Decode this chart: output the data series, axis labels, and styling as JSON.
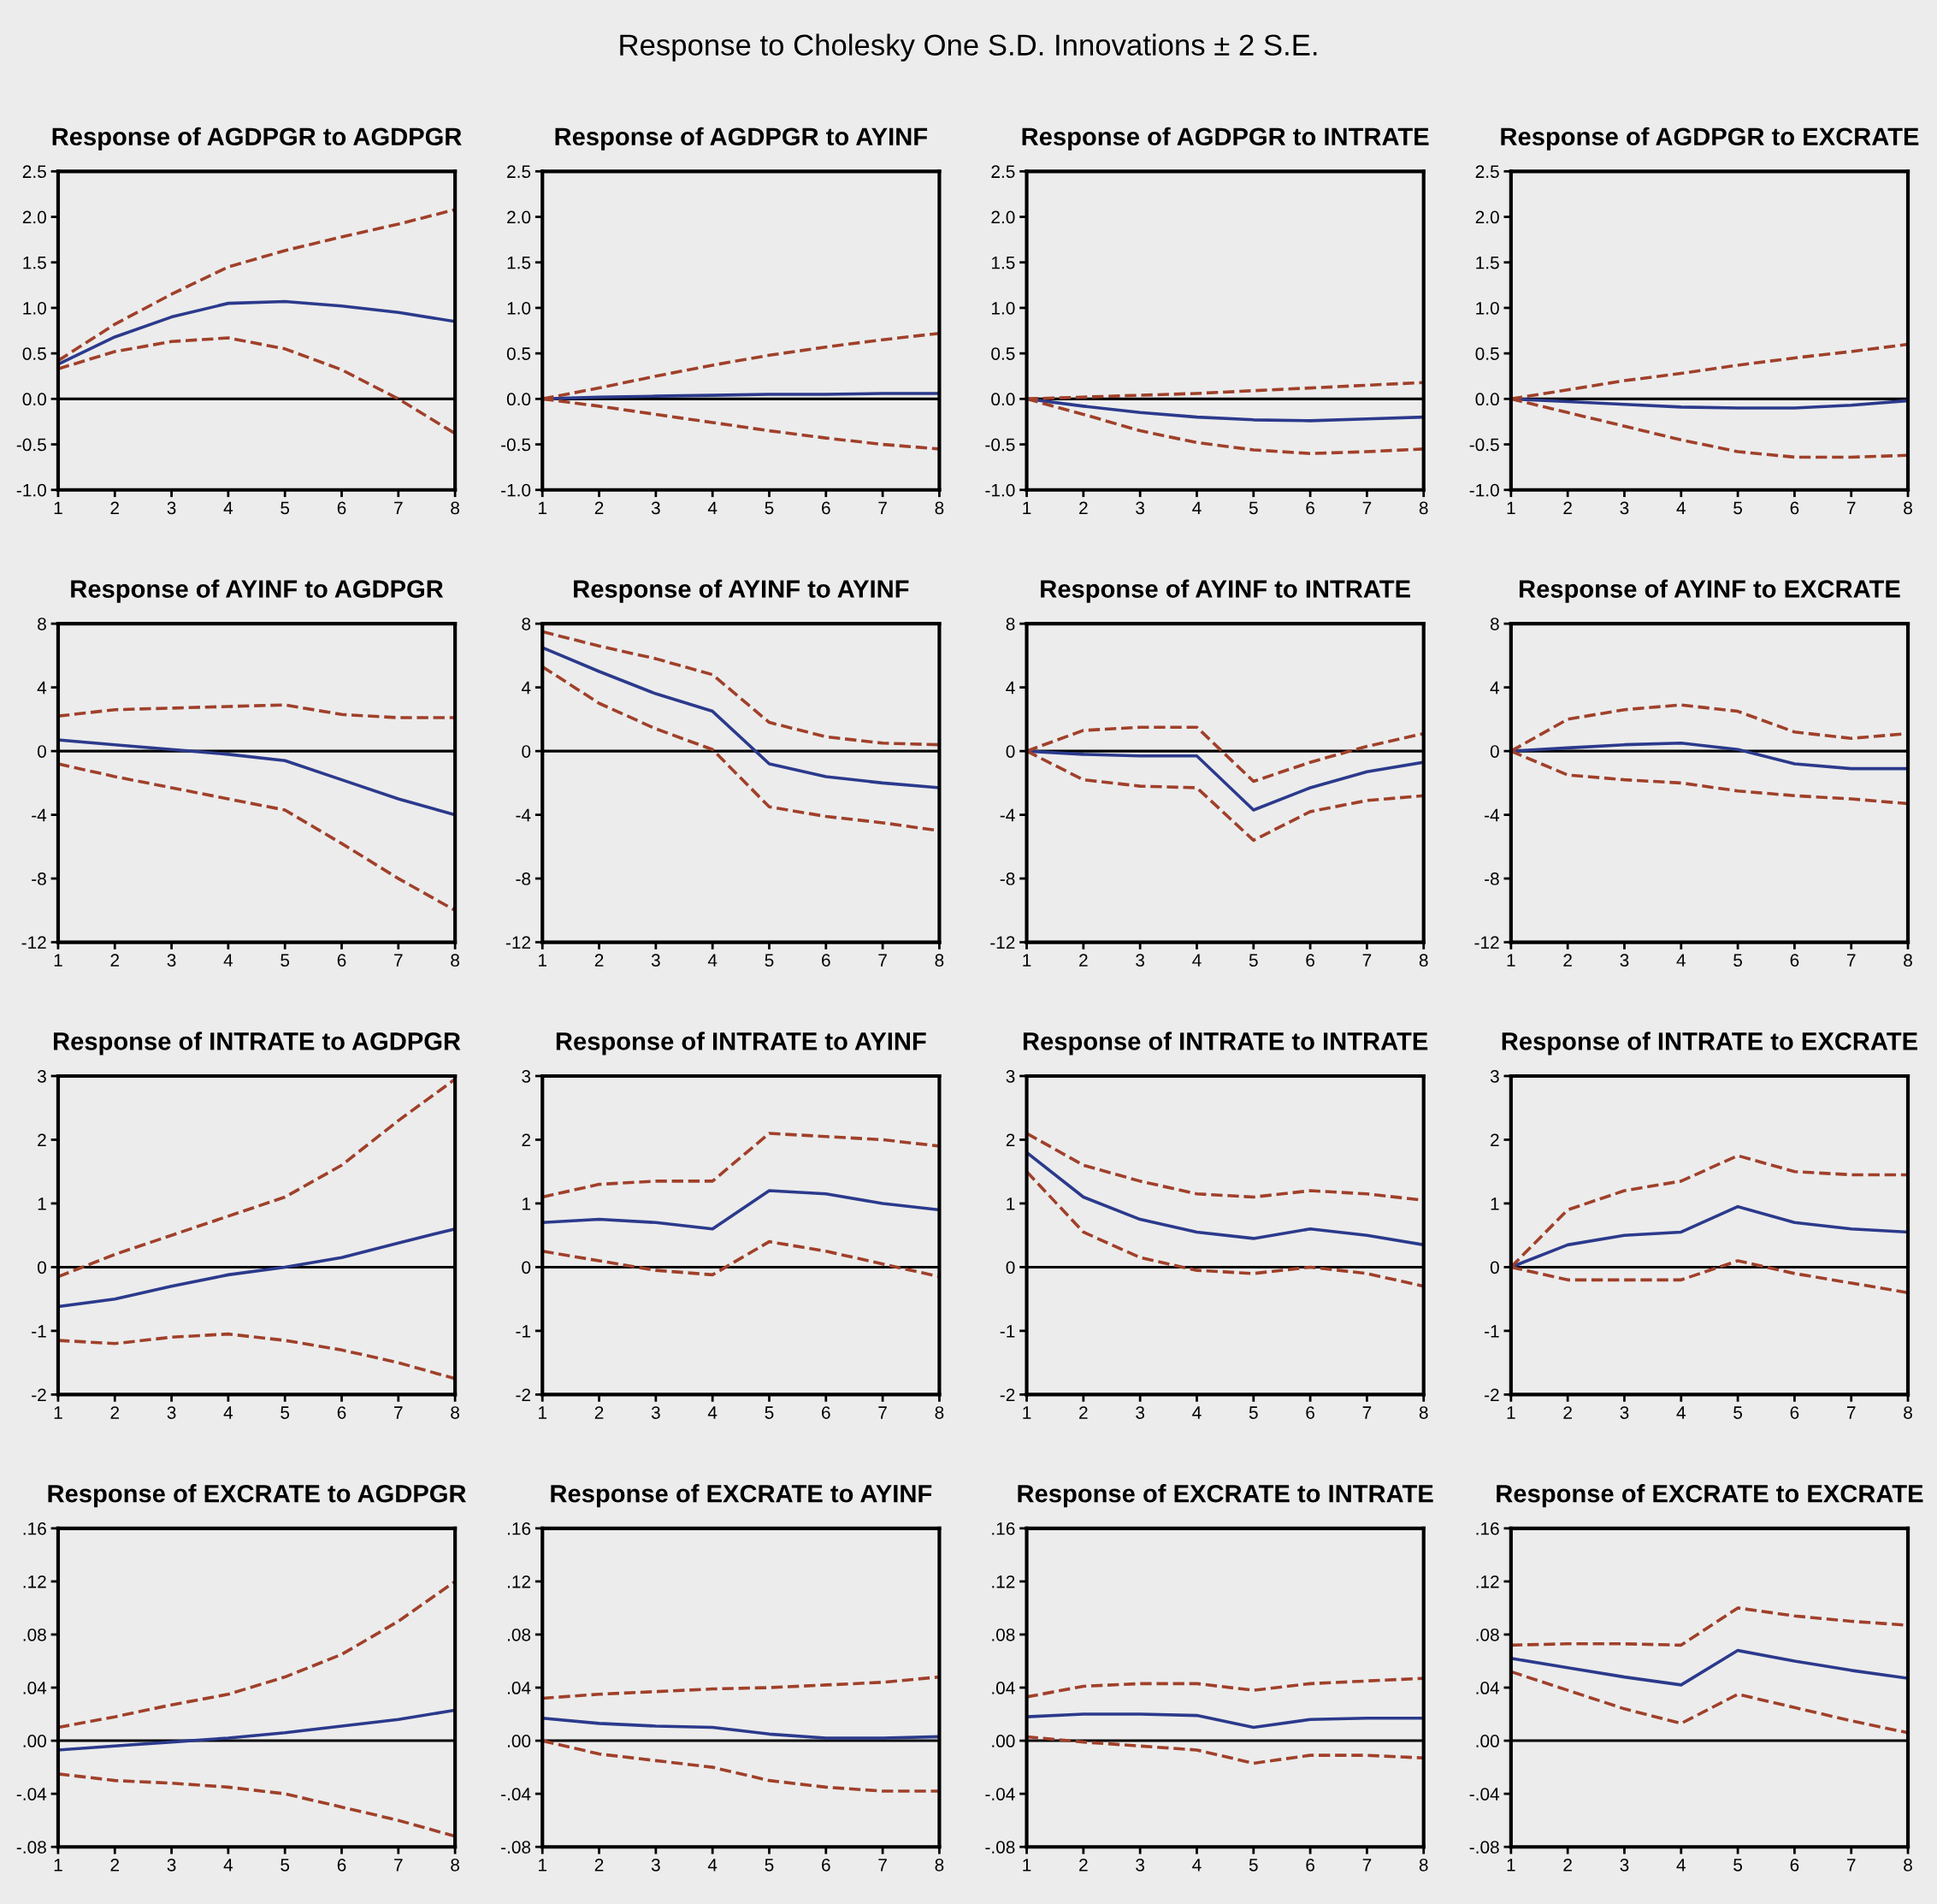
{
  "chart_data": [
    {
      "type": "line",
      "title": "Response of AGDPGR to AGDPGR",
      "annotations": [
        "Response to Cholesky One S.D. Innovations ± 2 S.E."
      ],
      "x": [
        1,
        2,
        3,
        4,
        5,
        6,
        7,
        8
      ],
      "xlim": [
        1,
        8
      ],
      "xticks": [
        1,
        2,
        3,
        4,
        5,
        6,
        7,
        8
      ],
      "ylim": [
        -1,
        2.5
      ],
      "yticks": [
        {
          "value": -1,
          "label": "-1.0"
        },
        {
          "value": -0.5,
          "label": "-0.5"
        },
        {
          "value": 0,
          "label": "0.0"
        },
        {
          "value": 0.5,
          "label": "0.5"
        },
        {
          "value": 1,
          "label": "1.0"
        },
        {
          "value": 1.5,
          "label": "1.5"
        },
        {
          "value": 2,
          "label": "2.0"
        },
        {
          "value": 2.5,
          "label": "2.5"
        }
      ],
      "ref_lines": [
        {
          "axis": "y",
          "value": 0,
          "color": "#000000"
        }
      ],
      "grid": false,
      "series": [
        {
          "color": "#2b3a8c",
          "line_style": "solid",
          "values": [
            0.38,
            0.68,
            0.9,
            1.05,
            1.07,
            1.02,
            0.95,
            0.85
          ]
        },
        {
          "color": "#a0402a",
          "line_style": "dashed",
          "values": [
            0.42,
            0.82,
            1.15,
            1.45,
            1.63,
            1.78,
            1.92,
            2.08
          ]
        },
        {
          "color": "#a0402a",
          "line_style": "dashed",
          "values": [
            0.33,
            0.52,
            0.63,
            0.67,
            0.55,
            0.32,
            0.0,
            -0.38
          ]
        }
      ]
    },
    {
      "type": "line",
      "title": "Response of AGDPGR to AYINF",
      "x": [
        1,
        2,
        3,
        4,
        5,
        6,
        7,
        8
      ],
      "xlim": [
        1,
        8
      ],
      "xticks": [
        1,
        2,
        3,
        4,
        5,
        6,
        7,
        8
      ],
      "ylim": [
        -1,
        2.5
      ],
      "yticks": [
        {
          "value": -1,
          "label": "-1.0"
        },
        {
          "value": -0.5,
          "label": "-0.5"
        },
        {
          "value": 0,
          "label": "0.0"
        },
        {
          "value": 0.5,
          "label": "0.5"
        },
        {
          "value": 1,
          "label": "1.0"
        },
        {
          "value": 1.5,
          "label": "1.5"
        },
        {
          "value": 2,
          "label": "2.0"
        },
        {
          "value": 2.5,
          "label": "2.5"
        }
      ],
      "ref_lines": [
        {
          "axis": "y",
          "value": 0,
          "color": "#000000"
        }
      ],
      "grid": false,
      "series": [
        {
          "color": "#2b3a8c",
          "line_style": "solid",
          "values": [
            0,
            0.02,
            0.03,
            0.04,
            0.05,
            0.05,
            0.06,
            0.06
          ]
        },
        {
          "color": "#a0402a",
          "line_style": "dashed",
          "values": [
            0,
            0.12,
            0.25,
            0.37,
            0.48,
            0.57,
            0.65,
            0.72
          ]
        },
        {
          "color": "#a0402a",
          "line_style": "dashed",
          "values": [
            0,
            -0.08,
            -0.17,
            -0.26,
            -0.35,
            -0.43,
            -0.5,
            -0.55
          ]
        }
      ]
    },
    {
      "type": "line",
      "title": "Response of AGDPGR to INTRATE",
      "x": [
        1,
        2,
        3,
        4,
        5,
        6,
        7,
        8
      ],
      "xlim": [
        1,
        8
      ],
      "xticks": [
        1,
        2,
        3,
        4,
        5,
        6,
        7,
        8
      ],
      "ylim": [
        -1,
        2.5
      ],
      "yticks": [
        {
          "value": -1,
          "label": "-1.0"
        },
        {
          "value": -0.5,
          "label": "-0.5"
        },
        {
          "value": 0,
          "label": "0.0"
        },
        {
          "value": 0.5,
          "label": "0.5"
        },
        {
          "value": 1,
          "label": "1.0"
        },
        {
          "value": 1.5,
          "label": "1.5"
        },
        {
          "value": 2,
          "label": "2.0"
        },
        {
          "value": 2.5,
          "label": "2.5"
        }
      ],
      "ref_lines": [
        {
          "axis": "y",
          "value": 0,
          "color": "#000000"
        }
      ],
      "grid": false,
      "series": [
        {
          "color": "#2b3a8c",
          "line_style": "solid",
          "values": [
            0,
            -0.08,
            -0.15,
            -0.2,
            -0.23,
            -0.24,
            -0.22,
            -0.2
          ]
        },
        {
          "color": "#a0402a",
          "line_style": "dashed",
          "values": [
            0,
            0.02,
            0.04,
            0.06,
            0.09,
            0.12,
            0.15,
            0.18
          ]
        },
        {
          "color": "#a0402a",
          "line_style": "dashed",
          "values": [
            0,
            -0.17,
            -0.35,
            -0.48,
            -0.56,
            -0.6,
            -0.58,
            -0.55
          ]
        }
      ]
    },
    {
      "type": "line",
      "title": "Response of AGDPGR to EXCRATE",
      "x": [
        1,
        2,
        3,
        4,
        5,
        6,
        7,
        8
      ],
      "xlim": [
        1,
        8
      ],
      "xticks": [
        1,
        2,
        3,
        4,
        5,
        6,
        7,
        8
      ],
      "ylim": [
        -1,
        2.5
      ],
      "yticks": [
        {
          "value": -1,
          "label": "-1.0"
        },
        {
          "value": -0.5,
          "label": "-0.5"
        },
        {
          "value": 0,
          "label": "0.0"
        },
        {
          "value": 0.5,
          "label": "0.5"
        },
        {
          "value": 1,
          "label": "1.0"
        },
        {
          "value": 1.5,
          "label": "1.5"
        },
        {
          "value": 2,
          "label": "2.0"
        },
        {
          "value": 2.5,
          "label": "2.5"
        }
      ],
      "ref_lines": [
        {
          "axis": "y",
          "value": 0,
          "color": "#000000"
        }
      ],
      "grid": false,
      "series": [
        {
          "color": "#2b3a8c",
          "line_style": "solid",
          "values": [
            0,
            -0.03,
            -0.06,
            -0.09,
            -0.1,
            -0.1,
            -0.07,
            -0.02
          ]
        },
        {
          "color": "#a0402a",
          "line_style": "dashed",
          "values": [
            0,
            0.1,
            0.2,
            0.28,
            0.37,
            0.45,
            0.52,
            0.6
          ]
        },
        {
          "color": "#a0402a",
          "line_style": "dashed",
          "values": [
            0,
            -0.15,
            -0.3,
            -0.45,
            -0.58,
            -0.64,
            -0.64,
            -0.62
          ]
        }
      ]
    },
    {
      "type": "line",
      "title": "Response of AYINF to AGDPGR",
      "x": [
        1,
        2,
        3,
        4,
        5,
        6,
        7,
        8
      ],
      "xlim": [
        1,
        8
      ],
      "xticks": [
        1,
        2,
        3,
        4,
        5,
        6,
        7,
        8
      ],
      "ylim": [
        -12,
        8
      ],
      "yticks": [
        -12,
        -8,
        -4,
        0,
        4,
        8
      ],
      "ref_lines": [
        {
          "axis": "y",
          "value": 0,
          "color": "#000000"
        }
      ],
      "grid": false,
      "series": [
        {
          "color": "#2b3a8c",
          "line_style": "solid",
          "values": [
            0.7,
            0.4,
            0.1,
            -0.2,
            -0.6,
            -1.8,
            -3.0,
            -4.0
          ]
        },
        {
          "color": "#a0402a",
          "line_style": "dashed",
          "values": [
            2.2,
            2.6,
            2.7,
            2.8,
            2.9,
            2.3,
            2.1,
            2.1
          ]
        },
        {
          "color": "#a0402a",
          "line_style": "dashed",
          "values": [
            -0.8,
            -1.6,
            -2.3,
            -3.0,
            -3.7,
            -5.8,
            -8.0,
            -10.0
          ]
        }
      ]
    },
    {
      "type": "line",
      "title": "Response of AYINF to AYINF",
      "x": [
        1,
        2,
        3,
        4,
        5,
        6,
        7,
        8
      ],
      "xlim": [
        1,
        8
      ],
      "xticks": [
        1,
        2,
        3,
        4,
        5,
        6,
        7,
        8
      ],
      "ylim": [
        -12,
        8
      ],
      "yticks": [
        -12,
        -8,
        -4,
        0,
        4,
        8
      ],
      "ref_lines": [
        {
          "axis": "y",
          "value": 0,
          "color": "#000000"
        }
      ],
      "grid": false,
      "series": [
        {
          "color": "#2b3a8c",
          "line_style": "solid",
          "values": [
            6.5,
            5.0,
            3.6,
            2.5,
            -0.8,
            -1.6,
            -2.0,
            -2.3
          ]
        },
        {
          "color": "#a0402a",
          "line_style": "dashed",
          "values": [
            7.5,
            6.6,
            5.8,
            4.8,
            1.8,
            0.9,
            0.5,
            0.4
          ]
        },
        {
          "color": "#a0402a",
          "line_style": "dashed",
          "values": [
            5.3,
            3.0,
            1.4,
            0.1,
            -3.5,
            -4.1,
            -4.5,
            -5.0
          ]
        }
      ]
    },
    {
      "type": "line",
      "title": "Response of AYINF to INTRATE",
      "x": [
        1,
        2,
        3,
        4,
        5,
        6,
        7,
        8
      ],
      "xlim": [
        1,
        8
      ],
      "xticks": [
        1,
        2,
        3,
        4,
        5,
        6,
        7,
        8
      ],
      "ylim": [
        -12,
        8
      ],
      "yticks": [
        -12,
        -8,
        -4,
        0,
        4,
        8
      ],
      "ref_lines": [
        {
          "axis": "y",
          "value": 0,
          "color": "#000000"
        }
      ],
      "grid": false,
      "series": [
        {
          "color": "#2b3a8c",
          "line_style": "solid",
          "values": [
            0,
            -0.2,
            -0.3,
            -0.3,
            -3.7,
            -2.3,
            -1.3,
            -0.7
          ]
        },
        {
          "color": "#a0402a",
          "line_style": "dashed",
          "values": [
            0,
            1.3,
            1.5,
            1.5,
            -1.9,
            -0.7,
            0.3,
            1.1
          ]
        },
        {
          "color": "#a0402a",
          "line_style": "dashed",
          "values": [
            0,
            -1.8,
            -2.2,
            -2.3,
            -5.6,
            -3.8,
            -3.1,
            -2.8
          ]
        }
      ]
    },
    {
      "type": "line",
      "title": "Response of AYINF to EXCRATE",
      "x": [
        1,
        2,
        3,
        4,
        5,
        6,
        7,
        8
      ],
      "xlim": [
        1,
        8
      ],
      "xticks": [
        1,
        2,
        3,
        4,
        5,
        6,
        7,
        8
      ],
      "ylim": [
        -12,
        8
      ],
      "yticks": [
        -12,
        -8,
        -4,
        0,
        4,
        8
      ],
      "ref_lines": [
        {
          "axis": "y",
          "value": 0,
          "color": "#000000"
        }
      ],
      "grid": false,
      "series": [
        {
          "color": "#2b3a8c",
          "line_style": "solid",
          "values": [
            0,
            0.2,
            0.4,
            0.5,
            0.1,
            -0.8,
            -1.1,
            -1.1
          ]
        },
        {
          "color": "#a0402a",
          "line_style": "dashed",
          "values": [
            0,
            2.0,
            2.6,
            2.9,
            2.5,
            1.2,
            0.8,
            1.1
          ]
        },
        {
          "color": "#a0402a",
          "line_style": "dashed",
          "values": [
            0,
            -1.5,
            -1.8,
            -2.0,
            -2.5,
            -2.8,
            -3.0,
            -3.3
          ]
        }
      ]
    },
    {
      "type": "line",
      "title": "Response of INTRATE to AGDPGR",
      "x": [
        1,
        2,
        3,
        4,
        5,
        6,
        7,
        8
      ],
      "xlim": [
        1,
        8
      ],
      "xticks": [
        1,
        2,
        3,
        4,
        5,
        6,
        7,
        8
      ],
      "ylim": [
        -2,
        3
      ],
      "yticks": [
        -2,
        -1,
        0,
        1,
        2,
        3
      ],
      "ref_lines": [
        {
          "axis": "y",
          "value": 0,
          "color": "#000000"
        }
      ],
      "grid": false,
      "series": [
        {
          "color": "#2b3a8c",
          "line_style": "solid",
          "values": [
            -0.62,
            -0.5,
            -0.3,
            -0.12,
            0.0,
            0.15,
            0.38,
            0.6
          ]
        },
        {
          "color": "#a0402a",
          "line_style": "dashed",
          "values": [
            -0.15,
            0.2,
            0.5,
            0.8,
            1.1,
            1.6,
            2.3,
            2.95
          ]
        },
        {
          "color": "#a0402a",
          "line_style": "dashed",
          "values": [
            -1.15,
            -1.2,
            -1.1,
            -1.05,
            -1.15,
            -1.3,
            -1.5,
            -1.75
          ]
        }
      ]
    },
    {
      "type": "line",
      "title": "Response of INTRATE to AYINF",
      "x": [
        1,
        2,
        3,
        4,
        5,
        6,
        7,
        8
      ],
      "xlim": [
        1,
        8
      ],
      "xticks": [
        1,
        2,
        3,
        4,
        5,
        6,
        7,
        8
      ],
      "ylim": [
        -2,
        3
      ],
      "yticks": [
        -2,
        -1,
        0,
        1,
        2,
        3
      ],
      "ref_lines": [
        {
          "axis": "y",
          "value": 0,
          "color": "#000000"
        }
      ],
      "grid": false,
      "series": [
        {
          "color": "#2b3a8c",
          "line_style": "solid",
          "values": [
            0.7,
            0.75,
            0.7,
            0.6,
            1.2,
            1.15,
            1.0,
            0.9
          ]
        },
        {
          "color": "#a0402a",
          "line_style": "dashed",
          "values": [
            1.1,
            1.3,
            1.35,
            1.35,
            2.1,
            2.05,
            2.0,
            1.9
          ]
        },
        {
          "color": "#a0402a",
          "line_style": "dashed",
          "values": [
            0.25,
            0.1,
            -0.05,
            -0.12,
            0.4,
            0.25,
            0.05,
            -0.15
          ]
        }
      ]
    },
    {
      "type": "line",
      "title": "Response of INTRATE to INTRATE",
      "x": [
        1,
        2,
        3,
        4,
        5,
        6,
        7,
        8
      ],
      "xlim": [
        1,
        8
      ],
      "xticks": [
        1,
        2,
        3,
        4,
        5,
        6,
        7,
        8
      ],
      "ylim": [
        -2,
        3
      ],
      "yticks": [
        -2,
        -1,
        0,
        1,
        2,
        3
      ],
      "ref_lines": [
        {
          "axis": "y",
          "value": 0,
          "color": "#000000"
        }
      ],
      "grid": false,
      "series": [
        {
          "color": "#2b3a8c",
          "line_style": "solid",
          "values": [
            1.8,
            1.1,
            0.75,
            0.55,
            0.45,
            0.6,
            0.5,
            0.35
          ]
        },
        {
          "color": "#a0402a",
          "line_style": "dashed",
          "values": [
            2.1,
            1.6,
            1.35,
            1.15,
            1.1,
            1.2,
            1.15,
            1.05
          ]
        },
        {
          "color": "#a0402a",
          "line_style": "dashed",
          "values": [
            1.5,
            0.55,
            0.15,
            -0.05,
            -0.1,
            0.0,
            -0.1,
            -0.3
          ]
        }
      ]
    },
    {
      "type": "line",
      "title": "Response of INTRATE to EXCRATE",
      "x": [
        1,
        2,
        3,
        4,
        5,
        6,
        7,
        8
      ],
      "xlim": [
        1,
        8
      ],
      "xticks": [
        1,
        2,
        3,
        4,
        5,
        6,
        7,
        8
      ],
      "ylim": [
        -2,
        3
      ],
      "yticks": [
        -2,
        -1,
        0,
        1,
        2,
        3
      ],
      "ref_lines": [
        {
          "axis": "y",
          "value": 0,
          "color": "#000000"
        }
      ],
      "grid": false,
      "series": [
        {
          "color": "#2b3a8c",
          "line_style": "solid",
          "values": [
            0,
            0.35,
            0.5,
            0.55,
            0.95,
            0.7,
            0.6,
            0.55
          ]
        },
        {
          "color": "#a0402a",
          "line_style": "dashed",
          "values": [
            0,
            0.9,
            1.2,
            1.35,
            1.75,
            1.5,
            1.45,
            1.45
          ]
        },
        {
          "color": "#a0402a",
          "line_style": "dashed",
          "values": [
            0,
            -0.2,
            -0.2,
            -0.2,
            0.1,
            -0.1,
            -0.25,
            -0.4
          ]
        }
      ]
    },
    {
      "type": "line",
      "title": "Response of EXCRATE to AGDPGR",
      "x": [
        1,
        2,
        3,
        4,
        5,
        6,
        7,
        8
      ],
      "xlim": [
        1,
        8
      ],
      "xticks": [
        1,
        2,
        3,
        4,
        5,
        6,
        7,
        8
      ],
      "ylim": [
        -0.08,
        0.16
      ],
      "yticks": [
        {
          "value": -0.08,
          "label": "-.08"
        },
        {
          "value": -0.04,
          "label": "-.04"
        },
        {
          "value": 0,
          "label": ".00"
        },
        {
          "value": 0.04,
          "label": ".04"
        },
        {
          "value": 0.08,
          "label": ".08"
        },
        {
          "value": 0.12,
          "label": ".12"
        },
        {
          "value": 0.16,
          "label": ".16"
        }
      ],
      "ref_lines": [
        {
          "axis": "y",
          "value": 0,
          "color": "#000000"
        }
      ],
      "grid": false,
      "series": [
        {
          "color": "#2b3a8c",
          "line_style": "solid",
          "values": [
            -0.007,
            -0.004,
            -0.001,
            0.002,
            0.006,
            0.011,
            0.016,
            0.023
          ]
        },
        {
          "color": "#a0402a",
          "line_style": "dashed",
          "values": [
            0.01,
            0.018,
            0.027,
            0.035,
            0.048,
            0.065,
            0.09,
            0.12
          ]
        },
        {
          "color": "#a0402a",
          "line_style": "dashed",
          "values": [
            -0.025,
            -0.03,
            -0.032,
            -0.035,
            -0.04,
            -0.05,
            -0.06,
            -0.072
          ]
        }
      ]
    },
    {
      "type": "line",
      "title": "Response of EXCRATE to AYINF",
      "x": [
        1,
        2,
        3,
        4,
        5,
        6,
        7,
        8
      ],
      "xlim": [
        1,
        8
      ],
      "xticks": [
        1,
        2,
        3,
        4,
        5,
        6,
        7,
        8
      ],
      "ylim": [
        -0.08,
        0.16
      ],
      "yticks": [
        {
          "value": -0.08,
          "label": "-.08"
        },
        {
          "value": -0.04,
          "label": "-.04"
        },
        {
          "value": 0,
          "label": ".00"
        },
        {
          "value": 0.04,
          "label": ".04"
        },
        {
          "value": 0.08,
          "label": ".08"
        },
        {
          "value": 0.12,
          "label": ".12"
        },
        {
          "value": 0.16,
          "label": ".16"
        }
      ],
      "ref_lines": [
        {
          "axis": "y",
          "value": 0,
          "color": "#000000"
        }
      ],
      "grid": false,
      "series": [
        {
          "color": "#2b3a8c",
          "line_style": "solid",
          "values": [
            0.017,
            0.013,
            0.011,
            0.01,
            0.005,
            0.002,
            0.002,
            0.003
          ]
        },
        {
          "color": "#a0402a",
          "line_style": "dashed",
          "values": [
            0.032,
            0.035,
            0.037,
            0.039,
            0.04,
            0.042,
            0.044,
            0.048
          ]
        },
        {
          "color": "#a0402a",
          "line_style": "dashed",
          "values": [
            0.0,
            -0.01,
            -0.015,
            -0.02,
            -0.03,
            -0.035,
            -0.038,
            -0.038
          ]
        }
      ]
    },
    {
      "type": "line",
      "title": "Response of EXCRATE to INTRATE",
      "x": [
        1,
        2,
        3,
        4,
        5,
        6,
        7,
        8
      ],
      "xlim": [
        1,
        8
      ],
      "xticks": [
        1,
        2,
        3,
        4,
        5,
        6,
        7,
        8
      ],
      "ylim": [
        -0.08,
        0.16
      ],
      "yticks": [
        {
          "value": -0.08,
          "label": "-.08"
        },
        {
          "value": -0.04,
          "label": "-.04"
        },
        {
          "value": 0,
          "label": ".00"
        },
        {
          "value": 0.04,
          "label": ".04"
        },
        {
          "value": 0.08,
          "label": ".08"
        },
        {
          "value": 0.12,
          "label": ".12"
        },
        {
          "value": 0.16,
          "label": ".16"
        }
      ],
      "ref_lines": [
        {
          "axis": "y",
          "value": 0,
          "color": "#000000"
        }
      ],
      "grid": false,
      "series": [
        {
          "color": "#2b3a8c",
          "line_style": "solid",
          "values": [
            0.018,
            0.02,
            0.02,
            0.019,
            0.01,
            0.016,
            0.017,
            0.017
          ]
        },
        {
          "color": "#a0402a",
          "line_style": "dashed",
          "values": [
            0.033,
            0.041,
            0.043,
            0.043,
            0.038,
            0.043,
            0.045,
            0.047
          ]
        },
        {
          "color": "#a0402a",
          "line_style": "dashed",
          "values": [
            0.003,
            -0.001,
            -0.004,
            -0.007,
            -0.017,
            -0.011,
            -0.011,
            -0.013
          ]
        }
      ]
    },
    {
      "type": "line",
      "title": "Response of EXCRATE to EXCRATE",
      "x": [
        1,
        2,
        3,
        4,
        5,
        6,
        7,
        8
      ],
      "xlim": [
        1,
        8
      ],
      "xticks": [
        1,
        2,
        3,
        4,
        5,
        6,
        7,
        8
      ],
      "ylim": [
        -0.08,
        0.16
      ],
      "yticks": [
        {
          "value": -0.08,
          "label": "-.08"
        },
        {
          "value": -0.04,
          "label": "-.04"
        },
        {
          "value": 0,
          "label": ".00"
        },
        {
          "value": 0.04,
          "label": ".04"
        },
        {
          "value": 0.08,
          "label": ".08"
        },
        {
          "value": 0.12,
          "label": ".12"
        },
        {
          "value": 0.16,
          "label": ".16"
        }
      ],
      "ref_lines": [
        {
          "axis": "y",
          "value": 0,
          "color": "#000000"
        }
      ],
      "grid": false,
      "series": [
        {
          "color": "#2b3a8c",
          "line_style": "solid",
          "values": [
            0.062,
            0.055,
            0.048,
            0.042,
            0.068,
            0.06,
            0.053,
            0.047
          ]
        },
        {
          "color": "#a0402a",
          "line_style": "dashed",
          "values": [
            0.072,
            0.073,
            0.073,
            0.072,
            0.1,
            0.094,
            0.09,
            0.087
          ]
        },
        {
          "color": "#a0402a",
          "line_style": "dashed",
          "values": [
            0.052,
            0.038,
            0.024,
            0.013,
            0.035,
            0.025,
            0.015,
            0.006
          ]
        }
      ]
    }
  ]
}
